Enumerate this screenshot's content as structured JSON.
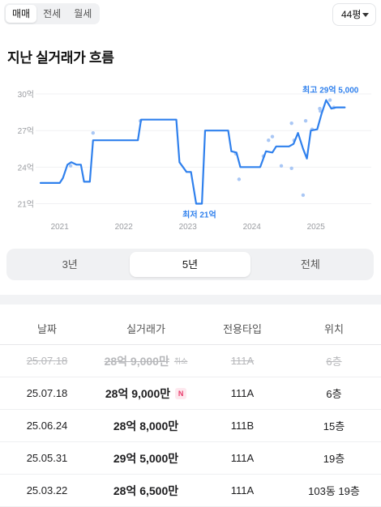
{
  "deal_tabs": [
    {
      "label": "매매",
      "active": true
    },
    {
      "label": "전세",
      "active": false
    },
    {
      "label": "월세",
      "active": false
    }
  ],
  "size_select": {
    "value": "44평"
  },
  "section_title": "지난 실거래가 흐름",
  "chart_data": {
    "type": "line",
    "y_tick_labels": [
      "30억",
      "27억",
      "24억",
      "21억"
    ],
    "y_tick_values": [
      30,
      27,
      24,
      21
    ],
    "x_tick_labels": [
      "2021",
      "2022",
      "2023",
      "2024",
      "2025"
    ],
    "x_tick_values": [
      2021.0,
      2022.0,
      2023.0,
      2024.0,
      2025.0
    ],
    "ylim": [
      20.3,
      31.2
    ],
    "xlim": [
      2020.7,
      2025.7
    ],
    "grid": true,
    "line_color": "#2f80ed",
    "point_color": "#a9c7f5",
    "series": [
      {
        "values": [
          {
            "x": 2020.7,
            "y": 22.7
          },
          {
            "x": 2021.0,
            "y": 22.7
          },
          {
            "x": 2021.05,
            "y": 23.1
          },
          {
            "x": 2021.12,
            "y": 24.2
          },
          {
            "x": 2021.18,
            "y": 24.4
          },
          {
            "x": 2021.26,
            "y": 24.2
          },
          {
            "x": 2021.33,
            "y": 24.2
          },
          {
            "x": 2021.38,
            "y": 22.8
          },
          {
            "x": 2021.47,
            "y": 22.8
          },
          {
            "x": 2021.52,
            "y": 26.2
          },
          {
            "x": 2022.22,
            "y": 26.2
          },
          {
            "x": 2022.27,
            "y": 27.9
          },
          {
            "x": 2022.82,
            "y": 27.9
          },
          {
            "x": 2022.87,
            "y": 24.4
          },
          {
            "x": 2022.98,
            "y": 23.6
          },
          {
            "x": 2023.05,
            "y": 23.6
          },
          {
            "x": 2023.13,
            "y": 21.0
          },
          {
            "x": 2023.22,
            "y": 21.0
          },
          {
            "x": 2023.27,
            "y": 27.0
          },
          {
            "x": 2023.63,
            "y": 27.0
          },
          {
            "x": 2023.68,
            "y": 25.3
          },
          {
            "x": 2023.76,
            "y": 25.2
          },
          {
            "x": 2023.82,
            "y": 24.0
          },
          {
            "x": 2024.13,
            "y": 24.0
          },
          {
            "x": 2024.22,
            "y": 25.3
          },
          {
            "x": 2024.32,
            "y": 25.2
          },
          {
            "x": 2024.38,
            "y": 25.7
          },
          {
            "x": 2024.58,
            "y": 25.7
          },
          {
            "x": 2024.65,
            "y": 25.9
          },
          {
            "x": 2024.72,
            "y": 26.8
          },
          {
            "x": 2024.8,
            "y": 25.5
          },
          {
            "x": 2024.86,
            "y": 24.7
          },
          {
            "x": 2024.92,
            "y": 27.0
          },
          {
            "x": 2025.02,
            "y": 27.1
          },
          {
            "x": 2025.09,
            "y": 28.4
          },
          {
            "x": 2025.16,
            "y": 29.5
          },
          {
            "x": 2025.24,
            "y": 28.8
          },
          {
            "x": 2025.32,
            "y": 28.9
          },
          {
            "x": 2025.45,
            "y": 28.9
          }
        ]
      }
    ],
    "points": [
      {
        "x": 2021.17,
        "y": 24.1
      },
      {
        "x": 2021.52,
        "y": 26.8
      },
      {
        "x": 2022.26,
        "y": 27.8
      },
      {
        "x": 2023.75,
        "y": 25.1
      },
      {
        "x": 2023.8,
        "y": 23.0
      },
      {
        "x": 2024.18,
        "y": 24.9
      },
      {
        "x": 2024.26,
        "y": 26.2
      },
      {
        "x": 2024.32,
        "y": 26.5
      },
      {
        "x": 2024.46,
        "y": 24.1
      },
      {
        "x": 2024.62,
        "y": 27.6
      },
      {
        "x": 2024.62,
        "y": 23.9
      },
      {
        "x": 2024.66,
        "y": 26.2
      },
      {
        "x": 2024.8,
        "y": 21.7
      },
      {
        "x": 2024.84,
        "y": 27.8
      },
      {
        "x": 2024.94,
        "y": 27.1
      },
      {
        "x": 2025.06,
        "y": 28.8
      },
      {
        "x": 2025.07,
        "y": 28.6
      },
      {
        "x": 2025.22,
        "y": 29.5
      },
      {
        "x": 2025.28,
        "y": 28.9
      }
    ],
    "annotations": [
      {
        "text": "최고 29억 5,000",
        "x": 2025.16,
        "y": 29.5,
        "anchor": "end",
        "position": "above"
      },
      {
        "text": "최저 21억",
        "x": 2023.18,
        "y": 21.0,
        "anchor": "middle",
        "position": "below"
      }
    ]
  },
  "range_tabs": [
    {
      "label": "3년",
      "active": false
    },
    {
      "label": "5년",
      "active": true
    },
    {
      "label": "전체",
      "active": false
    }
  ],
  "table": {
    "headers": {
      "date": "날짜",
      "price": "실거래가",
      "type": "전용타입",
      "floor": "위치"
    },
    "rows": [
      {
        "date": "25.07.18",
        "price": "28억 9,000만",
        "type": "111A",
        "floor": "6층",
        "cancelled": true,
        "badge": "취소"
      },
      {
        "date": "25.07.18",
        "price": "28억 9,000만",
        "type": "111A",
        "floor": "6층",
        "cancelled": false,
        "badge": "N"
      },
      {
        "date": "25.06.24",
        "price": "28억 8,000만",
        "type": "111B",
        "floor": "15층",
        "cancelled": false,
        "badge": ""
      },
      {
        "date": "25.05.31",
        "price": "29억 5,000만",
        "type": "111A",
        "floor": "19층",
        "cancelled": false,
        "badge": ""
      },
      {
        "date": "25.03.22",
        "price": "28억 6,500만",
        "type": "111A",
        "floor": "103동 19층",
        "cancelled": false,
        "badge": ""
      }
    ]
  }
}
